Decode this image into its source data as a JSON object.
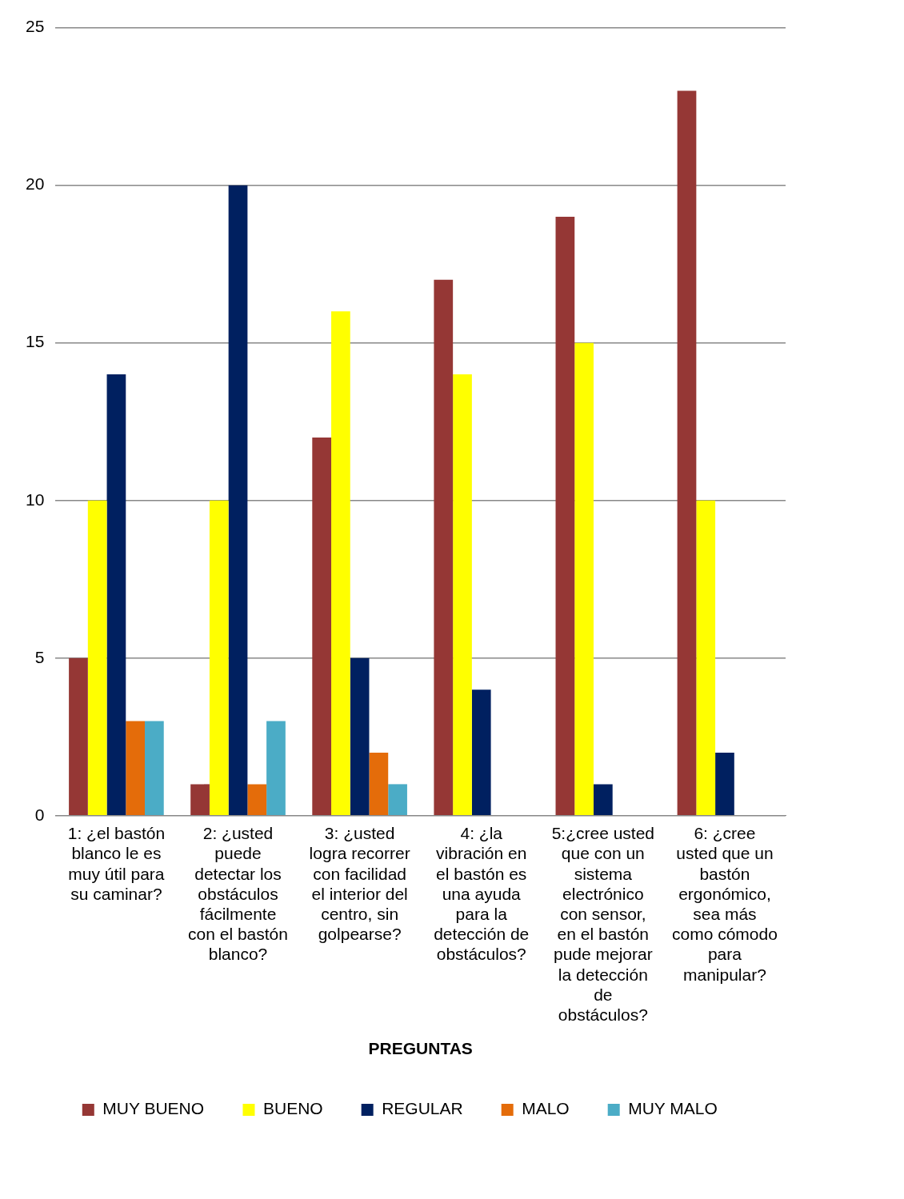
{
  "chart_data": {
    "type": "bar",
    "xlabel": "PREGUNTAS",
    "categories": [
      "1: ¿el bastón blanco le es muy útil para su caminar?",
      "2: ¿usted puede detectar los obstáculos fácilmente con el bastón blanco?",
      "3: ¿usted logra recorrer con facilidad el interior del centro, sin golpearse?",
      "4: ¿la vibración en el bastón es una ayuda para la detección de obstáculos?",
      "5:¿cree usted que con un sistema electrónico con sensor, en el bastón pude mejorar la detección de obstáculos?",
      "6: ¿cree usted que un bastón ergonómico, sea más como cómodo para manipular?"
    ],
    "series": [
      {
        "name": "MUY BUENO",
        "color": "#953735",
        "values": [
          5,
          1,
          12,
          17,
          19,
          23
        ]
      },
      {
        "name": "BUENO",
        "color": "#ffff00",
        "values": [
          10,
          10,
          16,
          14,
          15,
          10
        ]
      },
      {
        "name": "REGULAR",
        "color": "#002060",
        "values": [
          14,
          20,
          5,
          4,
          1,
          2
        ]
      },
      {
        "name": "MALO",
        "color": "#e46c0a",
        "values": [
          3,
          1,
          2,
          0,
          0,
          0
        ]
      },
      {
        "name": "MUY MALO",
        "color": "#4bacc6",
        "values": [
          3,
          3,
          1,
          0,
          0,
          0
        ]
      }
    ],
    "ylim": [
      0,
      25
    ],
    "yticks": [
      0,
      5,
      10,
      15,
      20,
      25
    ],
    "grid": "y",
    "legend": "bottom"
  }
}
